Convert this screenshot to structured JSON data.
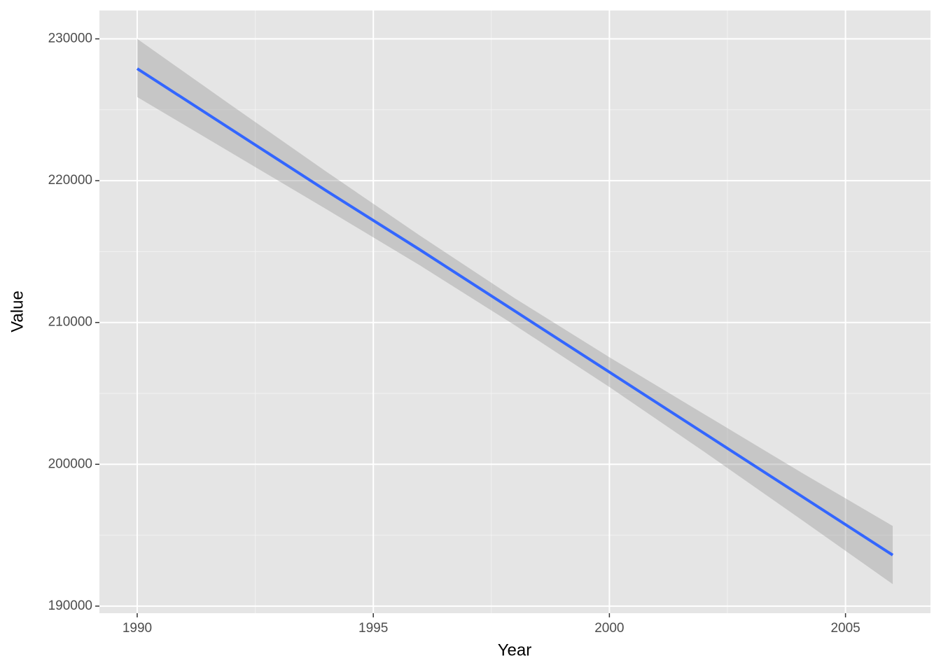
{
  "chart_data": {
    "type": "line",
    "x_label": "Year",
    "y_label": "Value",
    "x": [
      1990,
      1992,
      1994,
      1996,
      1998,
      2000,
      2002,
      2004,
      2006
    ],
    "values": [
      227900,
      223600,
      219300,
      215100,
      210800,
      206500,
      202200,
      197900,
      193600
    ],
    "lower": [
      225900,
      221950,
      218000,
      214000,
      209800,
      205450,
      200900,
      196250,
      191550
    ],
    "upper": [
      230000,
      225300,
      220650,
      216100,
      211700,
      207550,
      203550,
      199550,
      195650
    ],
    "color": "#3366ff",
    "band_color": "#999999",
    "xlim": [
      1989.2,
      2006.8
    ],
    "xticks": [
      1990,
      1995,
      2000,
      2005
    ],
    "ylim": [
      189500,
      232000
    ],
    "yticks": [
      190000,
      200000,
      210000,
      220000,
      230000
    ],
    "grid": true
  }
}
